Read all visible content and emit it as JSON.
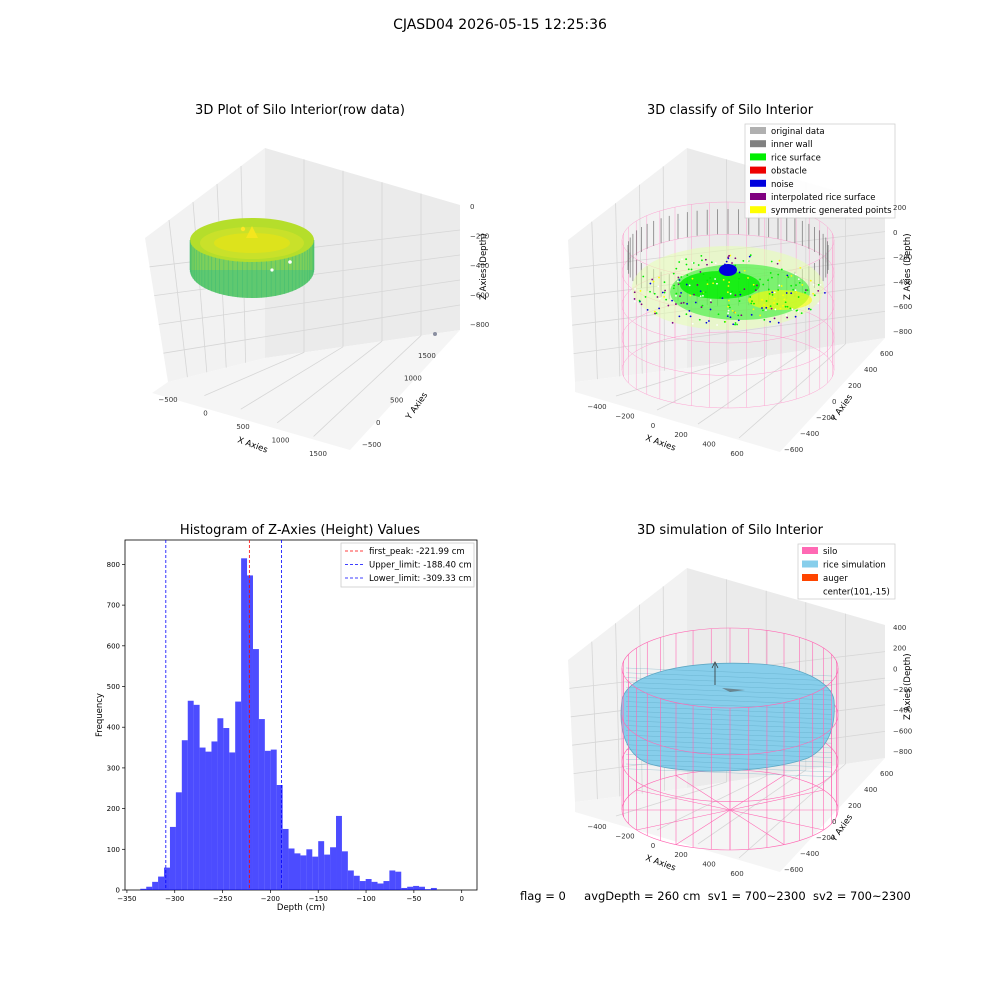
{
  "suptitle": "CJASD04 2026-05-15 12:25:36",
  "panels": {
    "raw": {
      "title": "3D Plot of Silo Interior(row data)",
      "x_label": "X Axies",
      "y_label": "Y Axies",
      "z_label": "Z Axies (Depth)",
      "x_ticks": [
        "−500",
        "0",
        "500",
        "1000",
        "1500"
      ],
      "y_ticks": [
        "−500",
        "0",
        "500",
        "1000",
        "1500"
      ],
      "z_ticks": [
        "0",
        "−200",
        "−400",
        "−600",
        "−800"
      ]
    },
    "classify": {
      "title": "3D classify of Silo Interior",
      "x_label": "X Axies",
      "y_label": "Y Axies",
      "z_label": "Z Axies (Depth)",
      "x_ticks": [
        "−400",
        "−200",
        "0",
        "200",
        "400",
        "600"
      ],
      "y_ticks": [
        "−600",
        "−400",
        "−200",
        "0",
        "200",
        "400",
        "600"
      ],
      "z_ticks": [
        "200",
        "0",
        "−200",
        "−400",
        "−600",
        "−800"
      ],
      "legend": [
        {
          "label": "original data",
          "color": "#b0b0b0"
        },
        {
          "label": "inner wall",
          "color": "#808080"
        },
        {
          "label": "rice surface",
          "color": "#00ee00"
        },
        {
          "label": "obstacle",
          "color": "#ee0000"
        },
        {
          "label": "noise",
          "color": "#0000dd"
        },
        {
          "label": "interpolated rice surface",
          "color": "#800080"
        },
        {
          "label": "symmetric generated points",
          "color": "#ffff00"
        }
      ]
    },
    "simulation": {
      "title": "3D simulation of Silo Interior",
      "x_label": "X Axies",
      "y_label": "Y Axies",
      "z_label": "Z Axies (Depth)",
      "x_ticks": [
        "−400",
        "−200",
        "0",
        "200",
        "400",
        "600"
      ],
      "y_ticks": [
        "−600",
        "−400",
        "−200",
        "0",
        "200",
        "400",
        "600"
      ],
      "z_ticks": [
        "400",
        "200",
        "0",
        "−200",
        "−400",
        "−600",
        "−800"
      ],
      "legend": [
        {
          "label": "silo",
          "color": "#ff69b4"
        },
        {
          "label": "rice simulation",
          "color": "#87ceeb"
        },
        {
          "label": "auger",
          "color": "#ff4500"
        },
        {
          "label": "center(101,-15)",
          "color": ""
        }
      ]
    }
  },
  "footer": {
    "flag": "flag = 0",
    "avg_depth": "avgDepth = 260 cm",
    "sv1": "sv1 = 700~2300",
    "sv2": "sv2 = 700~2300"
  },
  "colors": {
    "hist_bar": "#0000ff",
    "first_peak_line": "#ff0000",
    "limit_line": "#0000ff",
    "silo_wire": "#ff69b4",
    "rice_surface": "#87ceeb"
  },
  "chart_data": {
    "type": "bar",
    "title": "Histogram of Z-Axies (Height) Values",
    "xlabel": "Depth (cm)",
    "ylabel": "Frequency",
    "xlim": [
      -352,
      16
    ],
    "ylim": [
      0,
      860
    ],
    "x_ticks": [
      -350,
      -300,
      -250,
      -200,
      -150,
      -100,
      -50,
      0
    ],
    "x_tick_labels": [
      "−350",
      "−300",
      "−250",
      "−200",
      "−150",
      "−100",
      "−50",
      "0"
    ],
    "y_ticks": [
      0,
      100,
      200,
      300,
      400,
      500,
      600,
      700,
      800
    ],
    "bin_start": -336,
    "bin_width": 6.2,
    "values": [
      3,
      8,
      20,
      33,
      55,
      155,
      240,
      368,
      465,
      455,
      350,
      340,
      365,
      422,
      398,
      338,
      463,
      815,
      773,
      592,
      420,
      342,
      345,
      258,
      150,
      102,
      90,
      85,
      100,
      82,
      120,
      87,
      105,
      182,
      95,
      48,
      35,
      22,
      27,
      20,
      16,
      22,
      48,
      45,
      5,
      8,
      10,
      8,
      2,
      5
    ],
    "reference_lines": [
      {
        "label": "first_peak: -221.99 cm",
        "x": -221.99,
        "color": "#ff0000"
      },
      {
        "label": "Upper_limit: -188.40 cm",
        "x": -188.4,
        "color": "#0000ff"
      },
      {
        "label": "Lower_limit: -309.33 cm",
        "x": -309.33,
        "color": "#0000ff"
      }
    ],
    "legend_position": "upper right",
    "grid": false
  }
}
